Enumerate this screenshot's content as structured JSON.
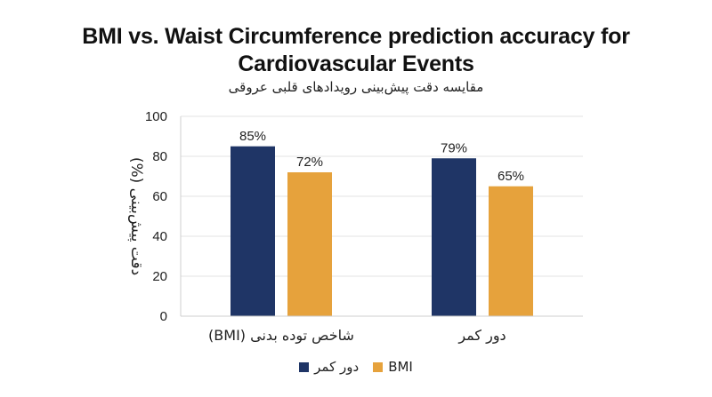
{
  "chart_data": {
    "type": "bar",
    "title": "BMI vs. Waist Circumference prediction accuracy for Cardiovascular Events",
    "subtitle": "مقایسه دقت پیش‌بینی رویدادهای قلبی عروقی",
    "categories": [
      "شاخص توده بدنی (BMI)",
      "دور کمر"
    ],
    "series": [
      {
        "name": "دور کمر",
        "color": "#1f3566",
        "values": [
          85,
          79
        ],
        "labels": [
          "85%",
          "79%"
        ]
      },
      {
        "name": "BMI",
        "color": "#e6a23c",
        "values": [
          72,
          65
        ],
        "labels": [
          "72%",
          "65%"
        ]
      }
    ],
    "ylabel": "دقت پیش‌بینی (%)",
    "xlabel": "",
    "ylim": [
      0,
      100
    ],
    "yticks": [
      0,
      20,
      40,
      60,
      80,
      100
    ],
    "grid": true,
    "legend_position": "bottom"
  }
}
